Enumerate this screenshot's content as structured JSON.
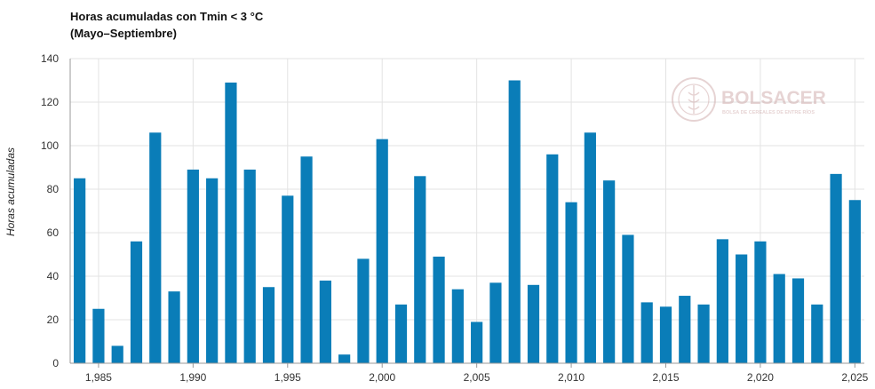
{
  "chart_data": {
    "type": "bar",
    "title": "Horas acumuladas con Tmin < 3 °C",
    "subtitle": "(Mayo–Septiembre)",
    "xlabel": "",
    "ylabel": "Horas acumuladas",
    "ylim": [
      0,
      140
    ],
    "yticks": [
      0,
      20,
      40,
      60,
      80,
      100,
      120,
      140
    ],
    "xlim": [
      1984,
      2025.5
    ],
    "xticks": [
      1985,
      1990,
      1995,
      2000,
      2005,
      2010,
      2015,
      2020,
      2025
    ],
    "xtick_labels": [
      "1,985",
      "1,990",
      "1,995",
      "2,000",
      "2,005",
      "2,010",
      "2,015",
      "2,020",
      "2,025"
    ],
    "grid": true,
    "bar_color": "#0a7db8",
    "x": [
      1984,
      1985,
      1986,
      1987,
      1988,
      1989,
      1990,
      1991,
      1992,
      1993,
      1994,
      1995,
      1996,
      1997,
      1998,
      1999,
      2000,
      2001,
      2002,
      2003,
      2004,
      2005,
      2006,
      2007,
      2008,
      2009,
      2010,
      2011,
      2012,
      2013,
      2014,
      2015,
      2016,
      2017,
      2018,
      2019,
      2020,
      2021,
      2022,
      2023,
      2024,
      2025
    ],
    "values": [
      85,
      25,
      8,
      56,
      106,
      33,
      89,
      85,
      129,
      89,
      35,
      77,
      95,
      38,
      4,
      48,
      103,
      27,
      86,
      49,
      34,
      19,
      37,
      130,
      36,
      96,
      74,
      106,
      84,
      59,
      28,
      26,
      31,
      27,
      57,
      50,
      56,
      41,
      39,
      27,
      87,
      75
    ]
  },
  "watermark": {
    "brand": "BOLSACER",
    "tagline": "BOLSA DE CEREALES DE ENTRE RÍOS",
    "color": "#c9a0a0"
  }
}
